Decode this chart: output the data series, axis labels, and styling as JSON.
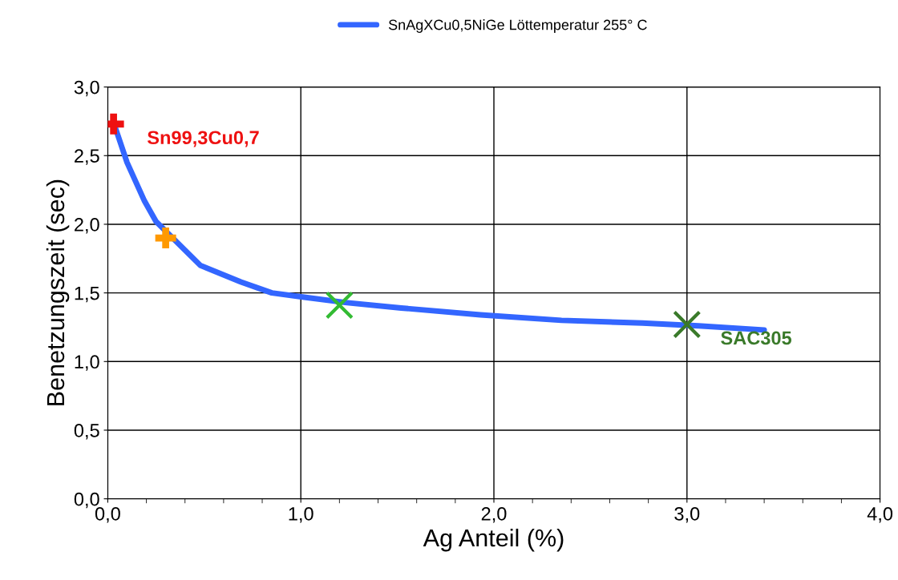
{
  "chart_data": {
    "type": "line",
    "xlabel": "Ag Anteil (%)",
    "ylabel": "Benetzungszeit (sec)",
    "xlim": [
      0,
      4
    ],
    "ylim": [
      0,
      3
    ],
    "xticks": [
      {
        "value": 0,
        "label": "0,0"
      },
      {
        "value": 1,
        "label": "1,0"
      },
      {
        "value": 2,
        "label": "2,0"
      },
      {
        "value": 3,
        "label": "3,0"
      },
      {
        "value": 4,
        "label": "4,0"
      }
    ],
    "yticks": [
      {
        "value": 0,
        "label": "0,0"
      },
      {
        "value": 0.5,
        "label": "0,5"
      },
      {
        "value": 1,
        "label": "1,0"
      },
      {
        "value": 1.5,
        "label": "1,5"
      },
      {
        "value": 2,
        "label": "2,0"
      },
      {
        "value": 2.5,
        "label": "2,5"
      },
      {
        "value": 3,
        "label": "3,0"
      }
    ],
    "grid": true,
    "legend": "top",
    "series": [
      {
        "name": "SnAgXCu0,5NiGe Löttemperatur 255° C",
        "color": "#3366ff",
        "marker": "none",
        "x": [
          0.04,
          0.1,
          0.19,
          0.25,
          0.48,
          0.69,
          0.85,
          1.01,
          1.23,
          1.52,
          1.93,
          2.35,
          2.77,
          3.06,
          3.4
        ],
        "values": [
          2.7,
          2.45,
          2.17,
          2.02,
          1.7,
          1.58,
          1.5,
          1.47,
          1.43,
          1.39,
          1.34,
          1.3,
          1.28,
          1.26,
          1.23
        ]
      },
      {
        "name": "Sn99,3Cu0,7",
        "type": "scatter",
        "color": "#ee1111",
        "marker": "cross",
        "x": [
          0.03
        ],
        "values": [
          2.73
        ]
      },
      {
        "type": "scatter",
        "color": "#ff9900",
        "marker": "cross",
        "x": [
          0.3
        ],
        "values": [
          1.9
        ]
      },
      {
        "type": "scatter",
        "color": "#33bb33",
        "marker": "x",
        "x": [
          1.2
        ],
        "values": [
          1.41
        ]
      },
      {
        "name": "SAC305",
        "type": "scatter",
        "color": "#3a7a2a",
        "marker": "x",
        "x": [
          3.0
        ],
        "values": [
          1.27
        ]
      }
    ]
  }
}
